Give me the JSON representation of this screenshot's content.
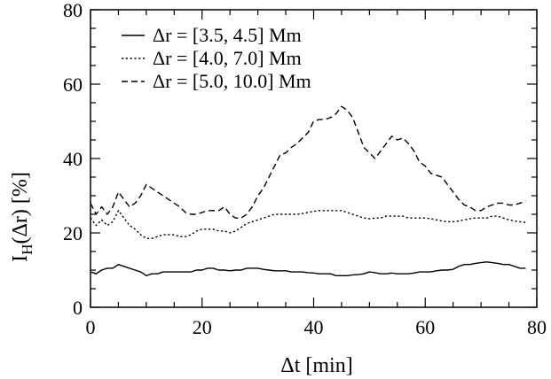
{
  "chart_data": {
    "type": "line",
    "xlabel": "Δt [min]",
    "ylabel_main": "I",
    "ylabel_sub": "H",
    "ylabel_rest": "(Δr) [%]",
    "xlim": [
      0,
      80
    ],
    "ylim": [
      0,
      80
    ],
    "xticks": [
      0,
      20,
      40,
      60,
      80
    ],
    "yticks": [
      0,
      20,
      40,
      60,
      80
    ],
    "xtick_labels": [
      "0",
      "20",
      "40",
      "60",
      "80"
    ],
    "ytick_labels": [
      "0",
      "20",
      "40",
      "60",
      "80"
    ],
    "grid": false,
    "legend_position": "top-left",
    "series": [
      {
        "name": "Δr = [3.5, 4.5] Mm",
        "style": "solid",
        "x": [
          0,
          1,
          2,
          3,
          4,
          5,
          6,
          7,
          8,
          9,
          10,
          11,
          12,
          13,
          14,
          15,
          16,
          17,
          18,
          19,
          20,
          21,
          22,
          23,
          24,
          25,
          26,
          27,
          28,
          29,
          30,
          31,
          32,
          33,
          34,
          35,
          36,
          37,
          38,
          39,
          40,
          41,
          42,
          43,
          44,
          45,
          46,
          47,
          48,
          49,
          50,
          51,
          52,
          53,
          54,
          55,
          56,
          57,
          58,
          59,
          60,
          61,
          62,
          63,
          64,
          65,
          66,
          67,
          68,
          69,
          70,
          71,
          72,
          73,
          74,
          75,
          76,
          77,
          78
        ],
        "y": [
          9.5,
          9,
          10,
          10.5,
          10.5,
          11.5,
          11,
          10.5,
          10,
          9.5,
          8.5,
          9,
          9,
          9.5,
          9.5,
          9.5,
          9.5,
          9.5,
          9.5,
          10,
          10,
          10.5,
          10.5,
          10,
          10,
          9.8,
          10,
          10,
          10.5,
          10.5,
          10.5,
          10.2,
          10,
          9.8,
          9.8,
          9.8,
          9.5,
          9.5,
          9.5,
          9.3,
          9.2,
          9,
          9,
          9,
          8.5,
          8.5,
          8.5,
          8.7,
          8.8,
          9,
          9.5,
          9.3,
          9,
          9,
          9.2,
          9,
          9,
          9,
          9.2,
          9.5,
          9.5,
          9.5,
          9.8,
          10,
          10,
          10.2,
          11,
          11.5,
          11.5,
          11.8,
          12,
          12.2,
          12,
          11.8,
          11.5,
          11.5,
          11,
          10.5,
          10.5
        ]
      },
      {
        "name": "Δr = [4.0, 7.0] Mm",
        "style": "dotted",
        "x": [
          0,
          1,
          2,
          3,
          4,
          5,
          6,
          7,
          8,
          9,
          10,
          11,
          12,
          13,
          14,
          15,
          16,
          17,
          18,
          19,
          20,
          21,
          22,
          23,
          24,
          25,
          26,
          27,
          28,
          29,
          30,
          31,
          32,
          33,
          34,
          35,
          36,
          37,
          38,
          39,
          40,
          41,
          42,
          43,
          44,
          45,
          46,
          47,
          48,
          49,
          50,
          51,
          52,
          53,
          54,
          55,
          56,
          57,
          58,
          59,
          60,
          61,
          62,
          63,
          64,
          65,
          66,
          67,
          68,
          69,
          70,
          71,
          72,
          73,
          74,
          75,
          76,
          77,
          78
        ],
        "y": [
          24,
          22,
          23.5,
          22,
          23,
          26,
          24,
          22,
          21,
          19.5,
          18.5,
          18.5,
          19,
          19.5,
          19.5,
          19.5,
          19,
          19,
          19.5,
          20.5,
          21,
          21,
          21,
          20.5,
          20.5,
          20,
          20.5,
          21.5,
          22.5,
          23,
          23.5,
          24,
          24.5,
          25,
          25,
          25,
          25,
          25,
          25.2,
          25.5,
          25.8,
          26,
          26,
          26,
          26,
          26,
          25.5,
          25,
          24.5,
          24,
          23.8,
          24,
          24,
          24.5,
          24.5,
          24.5,
          24.5,
          24,
          24,
          24,
          24,
          23.8,
          23.5,
          23.2,
          23,
          23,
          23.2,
          23.5,
          23.8,
          24,
          24,
          24,
          24.5,
          24.5,
          24,
          23.5,
          23.2,
          23,
          22.8
        ]
      },
      {
        "name": "Δr = [5.0, 10.0] Mm",
        "style": "dashed",
        "x": [
          0,
          1,
          2,
          3,
          4,
          5,
          6,
          7,
          8,
          9,
          10,
          11,
          12,
          13,
          14,
          15,
          16,
          17,
          18,
          19,
          20,
          21,
          22,
          23,
          24,
          25,
          26,
          27,
          28,
          29,
          30,
          31,
          32,
          33,
          34,
          35,
          36,
          37,
          38,
          39,
          40,
          41,
          42,
          43,
          44,
          45,
          46,
          47,
          48,
          49,
          50,
          51,
          52,
          53,
          54,
          55,
          56,
          57,
          58,
          59,
          60,
          61,
          62,
          63,
          64,
          65,
          66,
          67,
          68,
          69,
          70,
          71,
          72,
          73,
          74,
          75,
          76,
          77,
          78
        ],
        "y": [
          28,
          25,
          27,
          25,
          27,
          31,
          29,
          27,
          28,
          30,
          33,
          32,
          31,
          30,
          29,
          28,
          27,
          25.5,
          25,
          25,
          25.5,
          26,
          26,
          26,
          27,
          25,
          24,
          24,
          25,
          27,
          30,
          32,
          35,
          38,
          41,
          41.5,
          43,
          44,
          45.5,
          47,
          50,
          50.5,
          50.5,
          51,
          52,
          54,
          53,
          51,
          47,
          43,
          41.5,
          40,
          42,
          44,
          46,
          45,
          45.5,
          44,
          42,
          39,
          38,
          36,
          35.5,
          35,
          33,
          31,
          29,
          27.5,
          27,
          26,
          26,
          27,
          27.5,
          28,
          28,
          27.5,
          27.5,
          28,
          28.5
        ]
      }
    ]
  }
}
